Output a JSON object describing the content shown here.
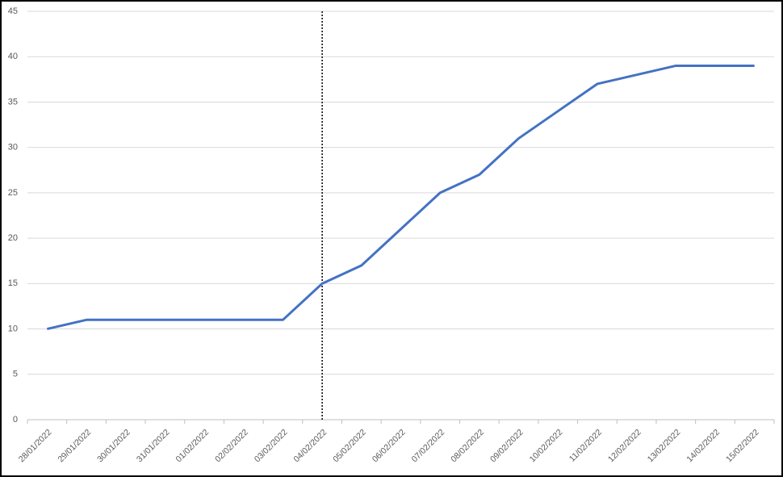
{
  "chart_data": {
    "type": "line",
    "categories": [
      "28/01/2022",
      "29/01/2022",
      "30/01/2022",
      "31/01/2022",
      "01/02/2022",
      "02/02/2022",
      "03/02/2022",
      "04/02/2022",
      "05/02/2022",
      "06/02/2022",
      "07/02/2022",
      "08/02/2022",
      "09/02/2022",
      "10/02/2022",
      "11/02/2022",
      "12/02/2022",
      "13/02/2022",
      "14/02/2022",
      "15/02/2022"
    ],
    "series": [
      {
        "color": "#4472c4",
        "values": [
          10,
          11,
          11,
          11,
          11,
          11,
          11,
          15,
          17,
          21,
          25,
          27,
          31,
          34,
          37,
          38,
          39,
          39,
          39
        ]
      }
    ],
    "ylim": [
      0,
      45
    ],
    "yticks": [
      0,
      5,
      10,
      15,
      20,
      25,
      30,
      35,
      40,
      45
    ],
    "grid": true,
    "reference_line": {
      "category": "04/02/2022",
      "style": "dotted",
      "color": "#000000"
    }
  }
}
